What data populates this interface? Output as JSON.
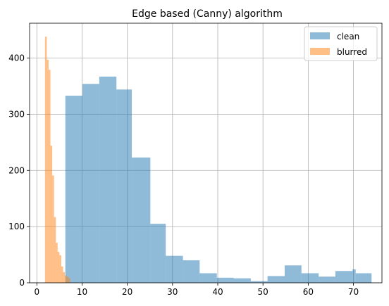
{
  "chart_data": {
    "type": "histogram",
    "title": "Edge based (Canny) algorithm",
    "xlabel": "",
    "ylabel": "",
    "xlim": [
      -1.6,
      76.3
    ],
    "ylim": [
      0,
      462
    ],
    "x_ticks": [
      0,
      10,
      20,
      30,
      40,
      50,
      60,
      70
    ],
    "y_ticks": [
      0,
      100,
      200,
      300,
      400
    ],
    "grid": true,
    "legend": {
      "placement": "top-right"
    },
    "series": [
      {
        "name": "clean",
        "color": "#1f77b4",
        "alpha": 0.5,
        "bins": [
          [
            6.3,
            10.1,
            333
          ],
          [
            10.1,
            13.8,
            354
          ],
          [
            13.8,
            17.6,
            367
          ],
          [
            17.6,
            21.0,
            344
          ],
          [
            21.0,
            25.1,
            223
          ],
          [
            25.1,
            28.5,
            105
          ],
          [
            28.5,
            32.3,
            48
          ],
          [
            32.3,
            36.0,
            40
          ],
          [
            36.0,
            39.8,
            17
          ],
          [
            39.8,
            43.5,
            9
          ],
          [
            43.5,
            47.3,
            8
          ],
          [
            47.3,
            51.0,
            3
          ],
          [
            51.0,
            54.8,
            12
          ],
          [
            54.8,
            58.5,
            31
          ],
          [
            58.5,
            62.3,
            17
          ],
          [
            62.3,
            66.0,
            11
          ],
          [
            66.0,
            69.8,
            21
          ],
          [
            69.8,
            70.5,
            24
          ],
          [
            70.5,
            74.0,
            17
          ]
        ]
      },
      {
        "name": "blurred",
        "color": "#ff7f0e",
        "alpha": 0.5,
        "bins": [
          [
            1.8,
            2.2,
            438
          ],
          [
            2.2,
            2.6,
            397
          ],
          [
            2.6,
            3.0,
            379
          ],
          [
            3.0,
            3.4,
            244
          ],
          [
            3.4,
            3.8,
            191
          ],
          [
            3.8,
            4.2,
            117
          ],
          [
            4.2,
            4.6,
            71
          ],
          [
            4.6,
            5.0,
            55
          ],
          [
            5.0,
            5.4,
            49
          ],
          [
            5.4,
            5.8,
            29
          ],
          [
            5.8,
            6.2,
            19
          ],
          [
            6.2,
            6.6,
            13
          ],
          [
            6.6,
            7.0,
            11
          ],
          [
            7.0,
            7.4,
            8
          ]
        ]
      }
    ]
  }
}
